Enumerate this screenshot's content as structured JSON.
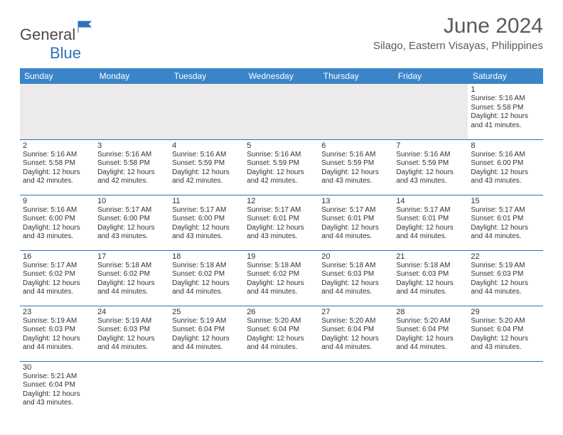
{
  "logo": {
    "text_general": "General",
    "text_blue": "Blue"
  },
  "title": "June 2024",
  "location": "Silago, Eastern Visayas, Philippines",
  "header_bg": "#3a85c9",
  "border_color": "#2d72b8",
  "days_of_week": [
    "Sunday",
    "Monday",
    "Tuesday",
    "Wednesday",
    "Thursday",
    "Friday",
    "Saturday"
  ],
  "weeks": [
    [
      null,
      null,
      null,
      null,
      null,
      null,
      {
        "n": "1",
        "sr": "Sunrise: 5:16 AM",
        "ss": "Sunset: 5:58 PM",
        "d1": "Daylight: 12 hours",
        "d2": "and 41 minutes."
      }
    ],
    [
      {
        "n": "2",
        "sr": "Sunrise: 5:16 AM",
        "ss": "Sunset: 5:58 PM",
        "d1": "Daylight: 12 hours",
        "d2": "and 42 minutes."
      },
      {
        "n": "3",
        "sr": "Sunrise: 5:16 AM",
        "ss": "Sunset: 5:58 PM",
        "d1": "Daylight: 12 hours",
        "d2": "and 42 minutes."
      },
      {
        "n": "4",
        "sr": "Sunrise: 5:16 AM",
        "ss": "Sunset: 5:59 PM",
        "d1": "Daylight: 12 hours",
        "d2": "and 42 minutes."
      },
      {
        "n": "5",
        "sr": "Sunrise: 5:16 AM",
        "ss": "Sunset: 5:59 PM",
        "d1": "Daylight: 12 hours",
        "d2": "and 42 minutes."
      },
      {
        "n": "6",
        "sr": "Sunrise: 5:16 AM",
        "ss": "Sunset: 5:59 PM",
        "d1": "Daylight: 12 hours",
        "d2": "and 43 minutes."
      },
      {
        "n": "7",
        "sr": "Sunrise: 5:16 AM",
        "ss": "Sunset: 5:59 PM",
        "d1": "Daylight: 12 hours",
        "d2": "and 43 minutes."
      },
      {
        "n": "8",
        "sr": "Sunrise: 5:16 AM",
        "ss": "Sunset: 6:00 PM",
        "d1": "Daylight: 12 hours",
        "d2": "and 43 minutes."
      }
    ],
    [
      {
        "n": "9",
        "sr": "Sunrise: 5:16 AM",
        "ss": "Sunset: 6:00 PM",
        "d1": "Daylight: 12 hours",
        "d2": "and 43 minutes."
      },
      {
        "n": "10",
        "sr": "Sunrise: 5:17 AM",
        "ss": "Sunset: 6:00 PM",
        "d1": "Daylight: 12 hours",
        "d2": "and 43 minutes."
      },
      {
        "n": "11",
        "sr": "Sunrise: 5:17 AM",
        "ss": "Sunset: 6:00 PM",
        "d1": "Daylight: 12 hours",
        "d2": "and 43 minutes."
      },
      {
        "n": "12",
        "sr": "Sunrise: 5:17 AM",
        "ss": "Sunset: 6:01 PM",
        "d1": "Daylight: 12 hours",
        "d2": "and 43 minutes."
      },
      {
        "n": "13",
        "sr": "Sunrise: 5:17 AM",
        "ss": "Sunset: 6:01 PM",
        "d1": "Daylight: 12 hours",
        "d2": "and 44 minutes."
      },
      {
        "n": "14",
        "sr": "Sunrise: 5:17 AM",
        "ss": "Sunset: 6:01 PM",
        "d1": "Daylight: 12 hours",
        "d2": "and 44 minutes."
      },
      {
        "n": "15",
        "sr": "Sunrise: 5:17 AM",
        "ss": "Sunset: 6:01 PM",
        "d1": "Daylight: 12 hours",
        "d2": "and 44 minutes."
      }
    ],
    [
      {
        "n": "16",
        "sr": "Sunrise: 5:17 AM",
        "ss": "Sunset: 6:02 PM",
        "d1": "Daylight: 12 hours",
        "d2": "and 44 minutes."
      },
      {
        "n": "17",
        "sr": "Sunrise: 5:18 AM",
        "ss": "Sunset: 6:02 PM",
        "d1": "Daylight: 12 hours",
        "d2": "and 44 minutes."
      },
      {
        "n": "18",
        "sr": "Sunrise: 5:18 AM",
        "ss": "Sunset: 6:02 PM",
        "d1": "Daylight: 12 hours",
        "d2": "and 44 minutes."
      },
      {
        "n": "19",
        "sr": "Sunrise: 5:18 AM",
        "ss": "Sunset: 6:02 PM",
        "d1": "Daylight: 12 hours",
        "d2": "and 44 minutes."
      },
      {
        "n": "20",
        "sr": "Sunrise: 5:18 AM",
        "ss": "Sunset: 6:03 PM",
        "d1": "Daylight: 12 hours",
        "d2": "and 44 minutes."
      },
      {
        "n": "21",
        "sr": "Sunrise: 5:18 AM",
        "ss": "Sunset: 6:03 PM",
        "d1": "Daylight: 12 hours",
        "d2": "and 44 minutes."
      },
      {
        "n": "22",
        "sr": "Sunrise: 5:19 AM",
        "ss": "Sunset: 6:03 PM",
        "d1": "Daylight: 12 hours",
        "d2": "and 44 minutes."
      }
    ],
    [
      {
        "n": "23",
        "sr": "Sunrise: 5:19 AM",
        "ss": "Sunset: 6:03 PM",
        "d1": "Daylight: 12 hours",
        "d2": "and 44 minutes."
      },
      {
        "n": "24",
        "sr": "Sunrise: 5:19 AM",
        "ss": "Sunset: 6:03 PM",
        "d1": "Daylight: 12 hours",
        "d2": "and 44 minutes."
      },
      {
        "n": "25",
        "sr": "Sunrise: 5:19 AM",
        "ss": "Sunset: 6:04 PM",
        "d1": "Daylight: 12 hours",
        "d2": "and 44 minutes."
      },
      {
        "n": "26",
        "sr": "Sunrise: 5:20 AM",
        "ss": "Sunset: 6:04 PM",
        "d1": "Daylight: 12 hours",
        "d2": "and 44 minutes."
      },
      {
        "n": "27",
        "sr": "Sunrise: 5:20 AM",
        "ss": "Sunset: 6:04 PM",
        "d1": "Daylight: 12 hours",
        "d2": "and 44 minutes."
      },
      {
        "n": "28",
        "sr": "Sunrise: 5:20 AM",
        "ss": "Sunset: 6:04 PM",
        "d1": "Daylight: 12 hours",
        "d2": "and 44 minutes."
      },
      {
        "n": "29",
        "sr": "Sunrise: 5:20 AM",
        "ss": "Sunset: 6:04 PM",
        "d1": "Daylight: 12 hours",
        "d2": "and 43 minutes."
      }
    ],
    [
      {
        "n": "30",
        "sr": "Sunrise: 5:21 AM",
        "ss": "Sunset: 6:04 PM",
        "d1": "Daylight: 12 hours",
        "d2": "and 43 minutes."
      },
      null,
      null,
      null,
      null,
      null,
      null
    ]
  ]
}
